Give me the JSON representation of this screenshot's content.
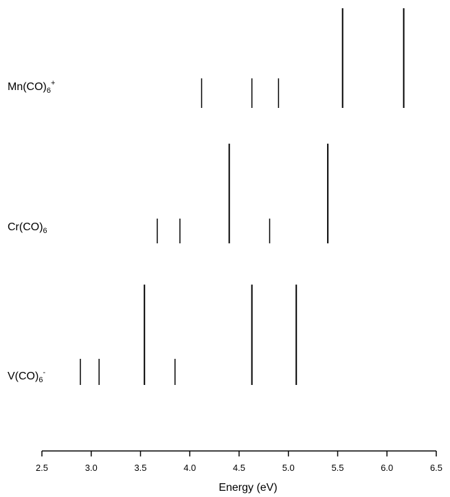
{
  "chart_data": {
    "type": "spectrum",
    "xlabel": "Energy (eV)",
    "xlim": [
      2.5,
      6.5
    ],
    "xticks": [
      "2.5",
      "3.0",
      "3.5",
      "4.0",
      "4.5",
      "5.0",
      "5.5",
      "6.0",
      "6.5"
    ],
    "series": [
      {
        "name": "Mn(CO)6+",
        "label": {
          "base": "Mn(CO)",
          "sub": "6",
          "sup": "+"
        },
        "lines": [
          {
            "x": 4.12,
            "intensity": "weak"
          },
          {
            "x": 4.63,
            "intensity": "weak"
          },
          {
            "x": 4.9,
            "intensity": "weak"
          },
          {
            "x": 5.55,
            "intensity": "strong"
          },
          {
            "x": 6.17,
            "intensity": "strong"
          }
        ]
      },
      {
        "name": "Cr(CO)6",
        "label": {
          "base": "Cr(CO)",
          "sub": "6",
          "sup": ""
        },
        "lines": [
          {
            "x": 3.67,
            "intensity": "weak"
          },
          {
            "x": 3.9,
            "intensity": "weak"
          },
          {
            "x": 4.4,
            "intensity": "strong"
          },
          {
            "x": 4.81,
            "intensity": "weak"
          },
          {
            "x": 5.4,
            "intensity": "strong"
          }
        ]
      },
      {
        "name": "V(CO)6-",
        "label": {
          "base": "V(CO)",
          "sub": "6",
          "sup": "-"
        },
        "lines": [
          {
            "x": 2.89,
            "intensity": "weak"
          },
          {
            "x": 3.08,
            "intensity": "weak"
          },
          {
            "x": 3.54,
            "intensity": "strong"
          },
          {
            "x": 3.85,
            "intensity": "weak"
          },
          {
            "x": 4.63,
            "intensity": "strong"
          },
          {
            "x": 5.08,
            "intensity": "strong"
          }
        ]
      }
    ],
    "grid": false,
    "legend": "none"
  }
}
